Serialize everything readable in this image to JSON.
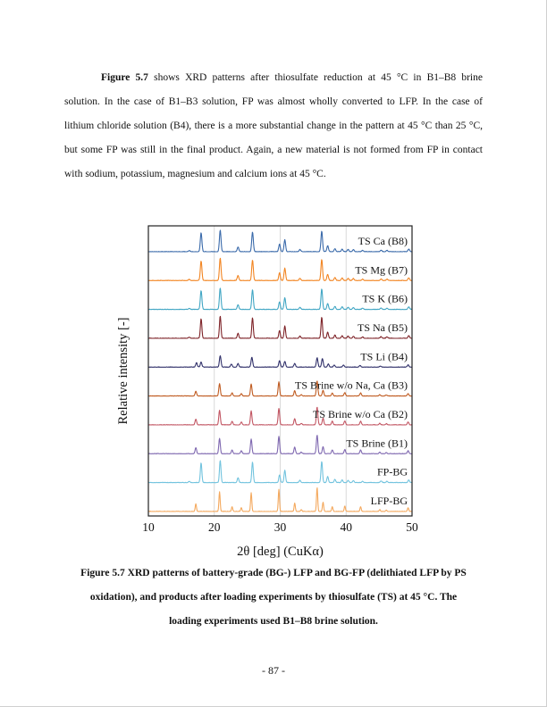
{
  "page": {
    "number_label": "- 87 -"
  },
  "paragraph": {
    "lines": [
      {
        "bold": "Figure 5.7",
        "rest": " shows XRD patterns after thiosulfate reduction at 45 °C in B1–B8 brine",
        "indent": true,
        "justify": true
      },
      {
        "bold": "",
        "rest": "solution. In the case of B1–B3 solution, FP was almost wholly converted to LFP. In the case of",
        "indent": false,
        "justify": true
      },
      {
        "bold": "",
        "rest": "lithium chloride solution (B4), there is a more substantial change in the pattern at 45 °C than 25 °C,",
        "indent": false,
        "justify": true
      },
      {
        "bold": "",
        "rest": "but some FP was still in the final product. Again, a new material is not formed from FP in contact",
        "indent": false,
        "justify": true
      },
      {
        "bold": "",
        "rest": "with sodium, potassium, magnesium and calcium ions at 45 °C.",
        "indent": false,
        "justify": false
      }
    ]
  },
  "chart_data": {
    "type": "line",
    "title": "",
    "xlabel": "2θ [deg] (CuKα)",
    "ylabel": "Relative intensity [-]",
    "xlim": [
      10,
      50
    ],
    "x_ticks": [
      10,
      20,
      30,
      40,
      50
    ],
    "grid_x": [
      20,
      30,
      40
    ],
    "grid_color": "#d9d9d9",
    "frame_color": "#222222",
    "legend_position": "inline-right",
    "patterns": {
      "FP": [
        [
          16.2,
          0.05
        ],
        [
          18.0,
          0.88
        ],
        [
          20.9,
          1.0
        ],
        [
          23.6,
          0.22
        ],
        [
          25.8,
          0.92
        ],
        [
          29.9,
          0.35
        ],
        [
          30.7,
          0.55
        ],
        [
          33.0,
          0.1
        ],
        [
          36.3,
          0.95
        ],
        [
          37.2,
          0.28
        ],
        [
          38.3,
          0.14
        ],
        [
          39.4,
          0.12
        ],
        [
          40.3,
          0.1
        ],
        [
          41.1,
          0.09
        ],
        [
          42.5,
          0.06
        ],
        [
          45.3,
          0.07
        ],
        [
          46.2,
          0.06
        ],
        [
          49.5,
          0.12
        ]
      ],
      "LFP": [
        [
          17.2,
          0.32
        ],
        [
          20.8,
          0.82
        ],
        [
          22.7,
          0.2
        ],
        [
          24.1,
          0.16
        ],
        [
          25.6,
          0.78
        ],
        [
          29.8,
          0.92
        ],
        [
          32.2,
          0.35
        ],
        [
          33.2,
          0.08
        ],
        [
          35.6,
          1.0
        ],
        [
          36.5,
          0.38
        ],
        [
          37.9,
          0.2
        ],
        [
          39.8,
          0.22
        ],
        [
          42.2,
          0.2
        ],
        [
          45.1,
          0.08
        ],
        [
          46.1,
          0.06
        ],
        [
          49.4,
          0.16
        ]
      ],
      "MIX": [
        [
          17.3,
          0.3
        ],
        [
          18.0,
          0.35
        ],
        [
          20.9,
          0.8
        ],
        [
          22.6,
          0.2
        ],
        [
          23.6,
          0.25
        ],
        [
          25.7,
          0.7
        ],
        [
          29.9,
          0.45
        ],
        [
          30.7,
          0.4
        ],
        [
          32.2,
          0.25
        ],
        [
          35.6,
          0.65
        ],
        [
          36.4,
          0.6
        ],
        [
          37.3,
          0.22
        ],
        [
          38.2,
          0.15
        ],
        [
          39.6,
          0.15
        ],
        [
          42.1,
          0.12
        ],
        [
          45.2,
          0.07
        ],
        [
          49.4,
          0.15
        ]
      ]
    },
    "series": [
      {
        "name": "TS Ca (B8)",
        "color": "#3a6aaa",
        "pattern": "FP",
        "height": 24,
        "sigma": 0.17
      },
      {
        "name": "TS Mg (B7)",
        "color": "#f28522",
        "pattern": "FP",
        "height": 25,
        "sigma": 0.17
      },
      {
        "name": "TS K (B6)",
        "color": "#41a6c4",
        "pattern": "FP",
        "height": 24,
        "sigma": 0.17
      },
      {
        "name": "TS Na (B5)",
        "color": "#7e2328",
        "pattern": "FP",
        "height": 25,
        "sigma": 0.16
      },
      {
        "name": "TS Li (B4)",
        "color": "#30306a",
        "pattern": "MIX",
        "height": 16,
        "sigma": 0.17
      },
      {
        "name": "TS Brine w/o Na, Ca (B3)",
        "color": "#c05c22",
        "pattern": "LFP",
        "height": 17,
        "sigma": 0.16
      },
      {
        "name": "TS Brine w/o Ca (B2)",
        "color": "#c25663",
        "pattern": "LFP",
        "height": 20,
        "sigma": 0.16
      },
      {
        "name": "TS Brine (B1)",
        "color": "#7f68b0",
        "pattern": "LFP",
        "height": 21,
        "sigma": 0.16
      },
      {
        "name": "FP-BG",
        "color": "#72c3de",
        "pattern": "FP",
        "height": 25,
        "sigma": 0.16
      },
      {
        "name": "LFP-BG",
        "color": "#f4a95e",
        "pattern": "LFP",
        "height": 27,
        "sigma": 0.13
      }
    ]
  },
  "caption": {
    "lines": [
      "Figure 5.7 XRD patterns of battery-grade (BG-) LFP and BG-FP (delithiated LFP by PS",
      "oxidation), and products after loading experiments by thiosulfate (TS) at 45 °C. The",
      "loading experiments used B1–B8 brine solution."
    ]
  }
}
